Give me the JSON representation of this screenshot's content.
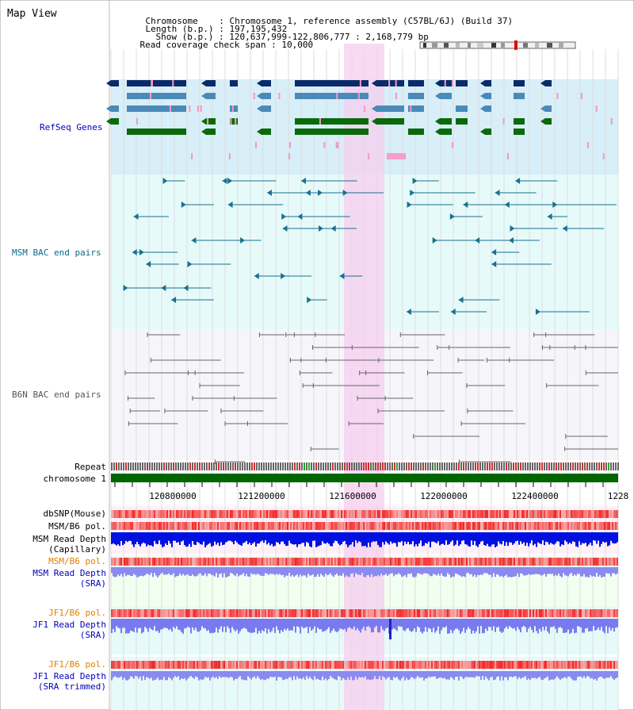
{
  "title": "Map View",
  "header": {
    "chromosome_label": "Chromosome",
    "chromosome_value": "Chromosome 1, reference assembly (C57BL/6J) (Build 37)",
    "length_label": "Length (b.p.)",
    "length_value": "197,195,432",
    "show_label": "Show (b.p.)",
    "show_value": "120,637,999-122,806,777 : 2,168,779 bp",
    "span_label": "Read coverage check span",
    "span_value": "10,000"
  },
  "tracks": {
    "refseq": "RefSeq Genes",
    "msm_bac": "MSM BAC end pairs",
    "b6n_bac": "B6N BAC end pairs",
    "repeat": "Repeat",
    "chromosome": "chromosome 1",
    "dbsnp": "dbSNP(Mouse)",
    "msm_b6_pol": "MSM/B6 pol.",
    "msm_depth_cap_1": "MSM Read Depth",
    "msm_depth_cap_2": "(Capillary)",
    "msm_b6_pol_sra": "MSM/B6 pol.",
    "msm_depth_sra_1": "MSM Read Depth",
    "msm_depth_sra_2": "(SRA)",
    "jf1_b6_pol": "JF1/B6 pol.",
    "jf1_depth_sra_1": "JF1 Read Depth",
    "jf1_depth_sra_2": "(SRA)",
    "jf1_b6_pol_trim": "JF1/B6 pol.",
    "jf1_depth_trim_1": "JF1 Read Depth",
    "jf1_depth_trim_2": "(SRA trimmed)"
  },
  "axis": {
    "ticks": [
      "120800000",
      "121200000",
      "121600000",
      "122000000",
      "122400000",
      "1228"
    ]
  },
  "colors": {
    "refseq_bg": "#d8eef8",
    "msm_bg": "#e6fafa",
    "b6n_bg": "#f6f6fa",
    "highlight": "#f7cdef",
    "gene_dark": "#0a2a6a",
    "gene_mid": "#4a8ab8",
    "gene_green": "#0a6a0a",
    "msm_line": "#1a7090",
    "b6n_line": "#666666",
    "track_blue": "#0000c0",
    "track_orange": "#e08000",
    "chrom_green": "#006600"
  }
}
